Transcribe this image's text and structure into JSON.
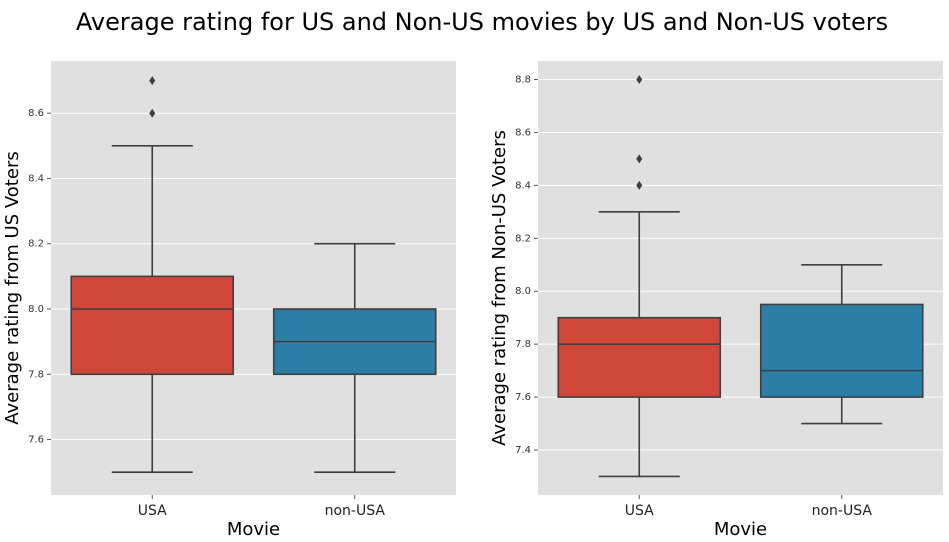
{
  "title": "Average rating for US and Non-US movies by US and Non-US voters",
  "chart_data": [
    {
      "type": "box",
      "xlabel": "Movie",
      "ylabel": "Average rating from US Voters",
      "ylim": [
        7.43,
        8.76
      ],
      "yticks": [
        7.6,
        7.8,
        8.0,
        8.2,
        8.4,
        8.6
      ],
      "grid": true,
      "categories": [
        "USA",
        "non-USA"
      ],
      "boxes": [
        {
          "category": "USA",
          "whisker_low": 7.5,
          "q1": 7.8,
          "median": 8.0,
          "q3": 8.1,
          "whisker_high": 8.5,
          "outliers": [
            8.6,
            8.7
          ],
          "color": "#d0473a"
        },
        {
          "category": "non-USA",
          "whisker_low": 7.5,
          "q1": 7.8,
          "median": 7.9,
          "q3": 8.0,
          "whisker_high": 8.2,
          "outliers": [],
          "color": "#2c7ea7"
        }
      ]
    },
    {
      "type": "box",
      "xlabel": "Movie",
      "ylabel": "Average rating from Non-US Voters",
      "ylim": [
        7.23,
        8.87
      ],
      "yticks": [
        7.4,
        7.6,
        7.8,
        8.0,
        8.2,
        8.4,
        8.6,
        8.8
      ],
      "grid": true,
      "categories": [
        "USA",
        "non-USA"
      ],
      "boxes": [
        {
          "category": "USA",
          "whisker_low": 7.3,
          "q1": 7.6,
          "median": 7.8,
          "q3": 7.9,
          "whisker_high": 8.3,
          "outliers": [
            8.4,
            8.5,
            8.8
          ],
          "color": "#d0473a"
        },
        {
          "category": "non-USA",
          "whisker_low": 7.5,
          "q1": 7.6,
          "median": 7.7,
          "q3": 7.95,
          "whisker_high": 8.1,
          "outliers": [],
          "color": "#2c7ea7"
        }
      ]
    }
  ]
}
